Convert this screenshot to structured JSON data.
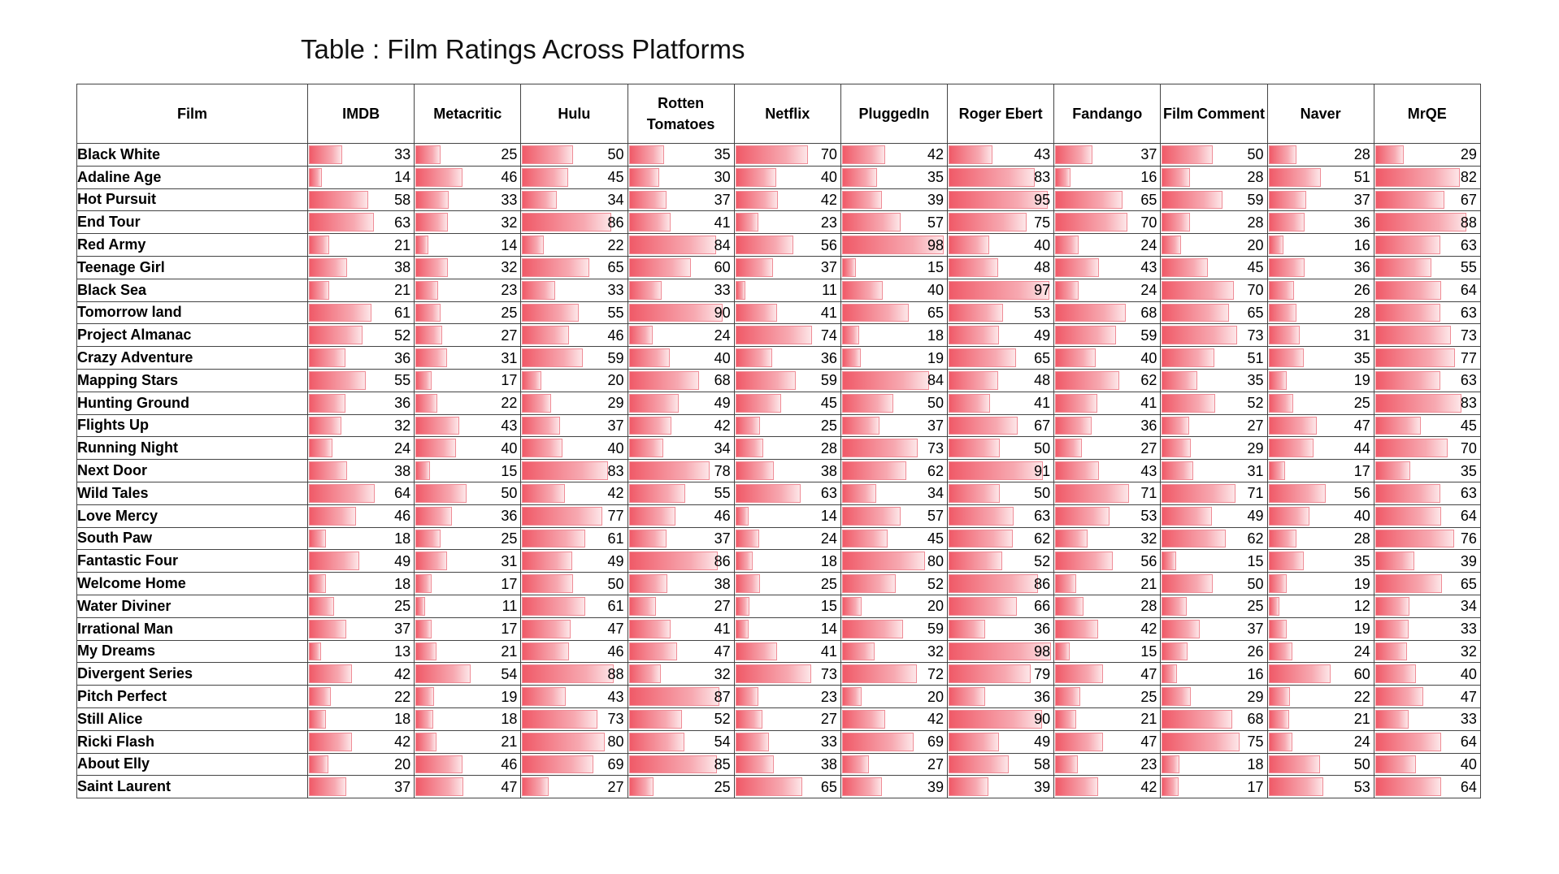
{
  "title": "Table : Film Ratings Across Platforms",
  "colors": {
    "bar": "#f05a68",
    "bar_light": "#fde6e8",
    "border": "#444444"
  },
  "chart_data": {
    "type": "table",
    "title": "Table : Film Ratings Across Platforms",
    "first_column_header": "Film",
    "columns": [
      "IMDB",
      "Metacritic",
      "Hulu",
      "Rotten Tomatoes",
      "Netflix",
      "PluggedIn",
      "Roger Ebert",
      "Fandango",
      "Film Comment",
      "Naver",
      "MrQE"
    ],
    "bar_scale_max": 100,
    "rows": [
      {
        "film": "Black White",
        "values": [
          33,
          25,
          50,
          35,
          70,
          42,
          43,
          37,
          50,
          28,
          29
        ]
      },
      {
        "film": "Adaline Age",
        "values": [
          14,
          46,
          45,
          30,
          40,
          35,
          83,
          16,
          28,
          51,
          82
        ]
      },
      {
        "film": "Hot Pursuit",
        "values": [
          58,
          33,
          34,
          37,
          42,
          39,
          95,
          65,
          59,
          37,
          67
        ]
      },
      {
        "film": "End Tour",
        "values": [
          63,
          32,
          86,
          41,
          23,
          57,
          75,
          70,
          28,
          36,
          88
        ]
      },
      {
        "film": "Red Army",
        "values": [
          21,
          14,
          22,
          84,
          56,
          98,
          40,
          24,
          20,
          16,
          63
        ]
      },
      {
        "film": "Teenage Girl",
        "values": [
          38,
          32,
          65,
          60,
          37,
          15,
          48,
          43,
          45,
          36,
          55
        ]
      },
      {
        "film": "Black Sea",
        "values": [
          21,
          23,
          33,
          33,
          11,
          40,
          97,
          24,
          70,
          26,
          64
        ]
      },
      {
        "film": "Tomorrow land",
        "values": [
          61,
          25,
          55,
          90,
          41,
          65,
          53,
          68,
          65,
          28,
          63
        ]
      },
      {
        "film": "Project Almanac",
        "values": [
          52,
          27,
          46,
          24,
          74,
          18,
          49,
          59,
          73,
          31,
          73
        ]
      },
      {
        "film": "Crazy Adventure",
        "values": [
          36,
          31,
          59,
          40,
          36,
          19,
          65,
          40,
          51,
          35,
          77
        ]
      },
      {
        "film": "Mapping Stars",
        "values": [
          55,
          17,
          20,
          68,
          59,
          84,
          48,
          62,
          35,
          19,
          63
        ]
      },
      {
        "film": "Hunting Ground",
        "values": [
          36,
          22,
          29,
          49,
          45,
          50,
          41,
          41,
          52,
          25,
          83
        ]
      },
      {
        "film": "Flights Up",
        "values": [
          32,
          43,
          37,
          42,
          25,
          37,
          67,
          36,
          27,
          47,
          45
        ]
      },
      {
        "film": "Running Night",
        "values": [
          24,
          40,
          40,
          34,
          28,
          73,
          50,
          27,
          29,
          44,
          70
        ]
      },
      {
        "film": "Next Door",
        "values": [
          38,
          15,
          83,
          78,
          38,
          62,
          91,
          43,
          31,
          17,
          35
        ]
      },
      {
        "film": "Wild Tales",
        "values": [
          64,
          50,
          42,
          55,
          63,
          34,
          50,
          71,
          71,
          56,
          63
        ]
      },
      {
        "film": "Love Mercy",
        "values": [
          46,
          36,
          77,
          46,
          14,
          57,
          63,
          53,
          49,
          40,
          64
        ]
      },
      {
        "film": "South Paw",
        "values": [
          18,
          25,
          61,
          37,
          24,
          45,
          62,
          32,
          62,
          28,
          76
        ]
      },
      {
        "film": "Fantastic Four",
        "values": [
          49,
          31,
          49,
          86,
          18,
          80,
          52,
          56,
          15,
          35,
          39
        ]
      },
      {
        "film": "Welcome Home",
        "values": [
          18,
          17,
          50,
          38,
          25,
          52,
          86,
          21,
          50,
          19,
          65
        ]
      },
      {
        "film": "Water Diviner",
        "values": [
          25,
          11,
          61,
          27,
          15,
          20,
          66,
          28,
          25,
          12,
          34
        ]
      },
      {
        "film": "Irrational Man",
        "values": [
          37,
          17,
          47,
          41,
          14,
          59,
          36,
          42,
          37,
          19,
          33
        ]
      },
      {
        "film": "My Dreams",
        "values": [
          13,
          21,
          46,
          47,
          41,
          32,
          98,
          15,
          26,
          24,
          32
        ]
      },
      {
        "film": "Divergent Series",
        "values": [
          42,
          54,
          88,
          32,
          73,
          72,
          79,
          47,
          16,
          60,
          40
        ]
      },
      {
        "film": "Pitch Perfect",
        "values": [
          22,
          19,
          43,
          87,
          23,
          20,
          36,
          25,
          29,
          22,
          47
        ]
      },
      {
        "film": "Still Alice",
        "values": [
          18,
          18,
          73,
          52,
          27,
          42,
          90,
          21,
          68,
          21,
          33
        ]
      },
      {
        "film": "Ricki Flash",
        "values": [
          42,
          21,
          80,
          54,
          33,
          69,
          49,
          47,
          75,
          24,
          64
        ]
      },
      {
        "film": "About Elly",
        "values": [
          20,
          46,
          69,
          85,
          38,
          27,
          58,
          23,
          18,
          50,
          40
        ]
      },
      {
        "film": "Saint Laurent",
        "values": [
          37,
          47,
          27,
          25,
          65,
          39,
          39,
          42,
          17,
          53,
          64
        ]
      }
    ]
  }
}
